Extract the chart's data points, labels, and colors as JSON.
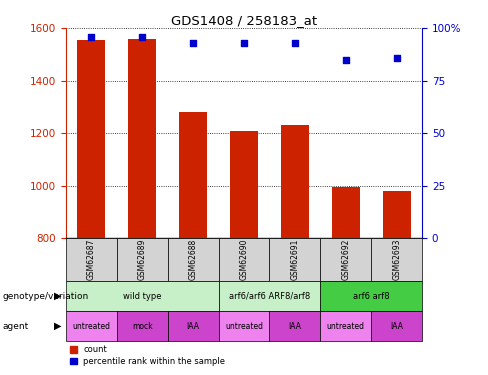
{
  "title": "GDS1408 / 258183_at",
  "samples": [
    "GSM62687",
    "GSM62689",
    "GSM62688",
    "GSM62690",
    "GSM62691",
    "GSM62692",
    "GSM62693"
  ],
  "count_values": [
    1555,
    1560,
    1280,
    1210,
    1230,
    995,
    980
  ],
  "percentile_values": [
    96,
    96,
    93,
    93,
    93,
    85,
    86
  ],
  "ylim_left": [
    800,
    1600
  ],
  "ylim_right": [
    0,
    100
  ],
  "yticks_left": [
    800,
    1000,
    1200,
    1400,
    1600
  ],
  "yticks_right": [
    0,
    25,
    50,
    75,
    100
  ],
  "genotype_groups": [
    {
      "label": "wild type",
      "start": 0,
      "end": 2,
      "color": "#C8F0C8"
    },
    {
      "label": "arf6/arf6 ARF8/arf8",
      "start": 3,
      "end": 4,
      "color": "#C8F0C8"
    },
    {
      "label": "arf6 arf8",
      "start": 5,
      "end": 6,
      "color": "#44CC44"
    }
  ],
  "agent_labels": [
    "untreated",
    "mock",
    "IAA",
    "untreated",
    "IAA",
    "untreated",
    "IAA"
  ],
  "agent_colors": [
    "#EE82EE",
    "#CC44CC",
    "#CC44CC",
    "#EE82EE",
    "#CC44CC",
    "#EE82EE",
    "#CC44CC"
  ],
  "bar_color": "#CC2200",
  "dot_color": "#0000CC",
  "bar_width": 0.55,
  "dot_size": 25,
  "grid_color": "black",
  "grid_linestyle": "dotted",
  "left_ylabel_color": "#CC2200",
  "right_ylabel_color": "#0000CC",
  "sample_label_color": "#D3D3D3"
}
